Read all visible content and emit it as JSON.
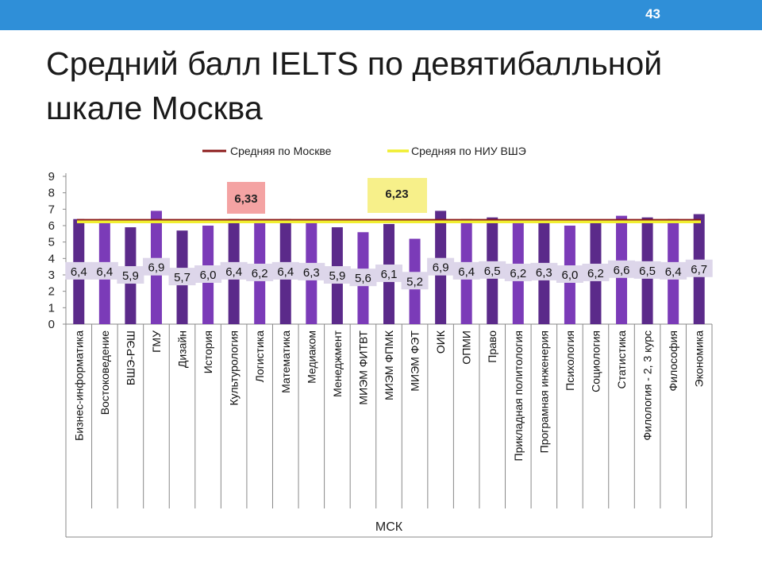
{
  "slide": {
    "page_number": "43",
    "title": "Средний балл IELTS по девятибалльной шкале Москва"
  },
  "colors": {
    "header_bar": "#2f8fd8",
    "bar_odd": "#5b2a8a",
    "bar_even": "#7b3bb8",
    "moscow_line": "#8b1a1a",
    "hse_line": "#f0ee30",
    "moscow_callout_fill": "#f4a3a3",
    "hse_callout_fill": "#f7f08a",
    "label_box": "#ddd6ea"
  },
  "chart_data": {
    "type": "bar",
    "title": "",
    "xlabel": "МСК",
    "ylabel": "",
    "ylim": [
      0,
      9
    ],
    "yticks": [
      "0",
      "1",
      "2",
      "3",
      "4",
      "5",
      "6",
      "7",
      "8",
      "9"
    ],
    "grid": false,
    "legend_position": "top",
    "categories": [
      "Бизнес-информатика",
      "Востоковедение",
      "ВШЭ-РЭШ",
      "ГМУ",
      "Дизайн",
      "История",
      "Культурология",
      "Логистика",
      "Математика",
      "Медиаком",
      "Менеджмент",
      "МИЭМ ФИТВТ",
      "МИЭМ ФПМК",
      "МИЭМ ФЭТ",
      "ОИК",
      "ОПМИ",
      "Право",
      "Прикладная политология",
      "Програмная инженерия",
      "Психология",
      "Социология",
      "Статистика",
      "Филология - 2, 3 курс",
      "Философия",
      "Экономика"
    ],
    "values": [
      6.4,
      6.4,
      5.9,
      6.9,
      5.7,
      6.0,
      6.4,
      6.2,
      6.4,
      6.3,
      5.9,
      5.6,
      6.1,
      5.2,
      6.9,
      6.4,
      6.5,
      6.2,
      6.3,
      6.0,
      6.2,
      6.6,
      6.5,
      6.4,
      6.7
    ],
    "data_labels": [
      "6,4",
      "6,4",
      "5,9",
      "6,9",
      "5,7",
      "6,0",
      "6,4",
      "6,2",
      "6,4",
      "6,3",
      "5,9",
      "5,6",
      "6,1",
      "5,2",
      "6,9",
      "6,4",
      "6,5",
      "6,2",
      "6,3",
      "6,0",
      "6,2",
      "6,6",
      "6,5",
      "6,4",
      "6,7"
    ],
    "reference_lines": [
      {
        "name": "Средняя по Москве",
        "value": 6.33,
        "label": "6,33",
        "color": "#8b1a1a"
      },
      {
        "name": "Средняя по НИУ ВШЭ",
        "value": 6.23,
        "label": "6,23",
        "color": "#f0ee30"
      }
    ]
  }
}
